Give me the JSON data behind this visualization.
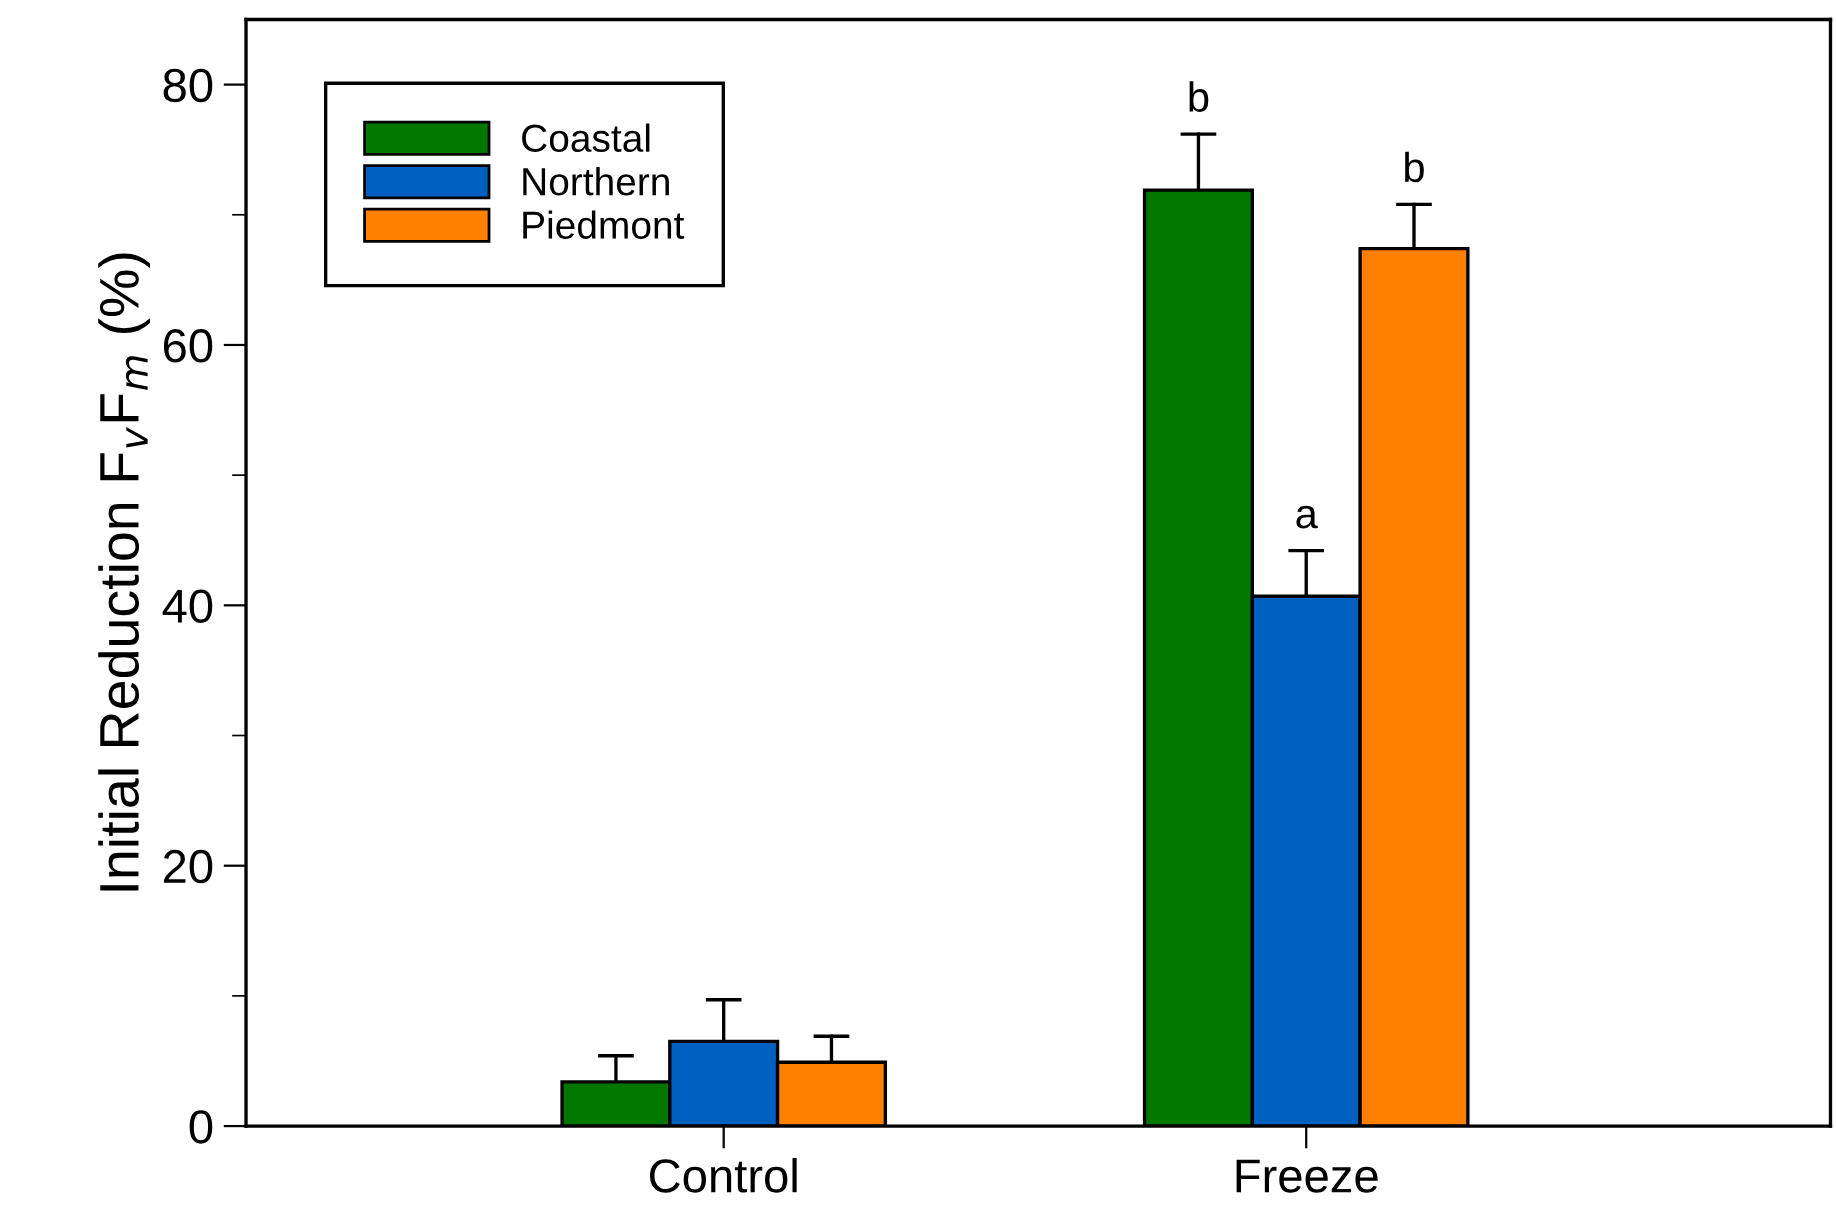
{
  "chart_data": {
    "type": "bar",
    "ylabel": "Initial Reduction F$_{v}$F$_{m}$ (%)",
    "categories": [
      "Control",
      "Freeze"
    ],
    "series": [
      {
        "name": "Coastal",
        "color": "#007800",
        "values": [
          3.4,
          71.9
        ],
        "errors": [
          [
            3.4,
            5.4
          ],
          [
            71.9,
            76.2
          ]
        ],
        "value_labels": [
          null,
          "b"
        ]
      },
      {
        "name": "Northern",
        "color": "#0060c0",
        "values": [
          6.5,
          40.7
        ],
        "errors": [
          [
            6.5,
            9.7
          ],
          [
            40.7,
            44.2
          ]
        ],
        "value_labels": [
          null,
          "a"
        ]
      },
      {
        "name": "Piedmont",
        "color": "#ff8000",
        "values": [
          4.9,
          67.4
        ],
        "errors": [
          [
            4.9,
            6.9
          ],
          [
            67.4,
            70.8
          ]
        ],
        "value_labels": [
          null,
          "b"
        ]
      }
    ],
    "ylim": [
      0,
      85
    ],
    "yticks": [
      0,
      {
        "value": 10,
        "label": null
      },
      20,
      {
        "value": 30,
        "label": null
      },
      40,
      {
        "value": 50,
        "label": null
      },
      60,
      {
        "value": 70,
        "label": null
      },
      80
    ],
    "legend": "top left",
    "grid": false
  }
}
